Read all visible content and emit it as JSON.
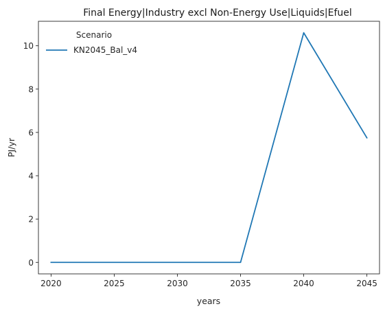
{
  "chart_data": {
    "type": "line",
    "title": "Final Energy|Industry excl Non-Energy Use|Liquids|Efuel",
    "xlabel": "years",
    "ylabel": "PJ/yr",
    "x": [
      2020,
      2025,
      2030,
      2035,
      2040,
      2045
    ],
    "xlim": [
      2019,
      2046
    ],
    "ylim": [
      -0.53,
      11.13
    ],
    "xticks": [
      2020,
      2025,
      2030,
      2035,
      2040,
      2045
    ],
    "yticks": [
      0,
      2,
      4,
      6,
      8,
      10
    ],
    "grid": false,
    "legend": {
      "title": "Scenario",
      "placement": "top-left"
    },
    "series": [
      {
        "name": "KN2045_Bal_v4",
        "color": "#1f77b4",
        "values": [
          0,
          0,
          0,
          0,
          10.6,
          5.75
        ]
      }
    ]
  }
}
